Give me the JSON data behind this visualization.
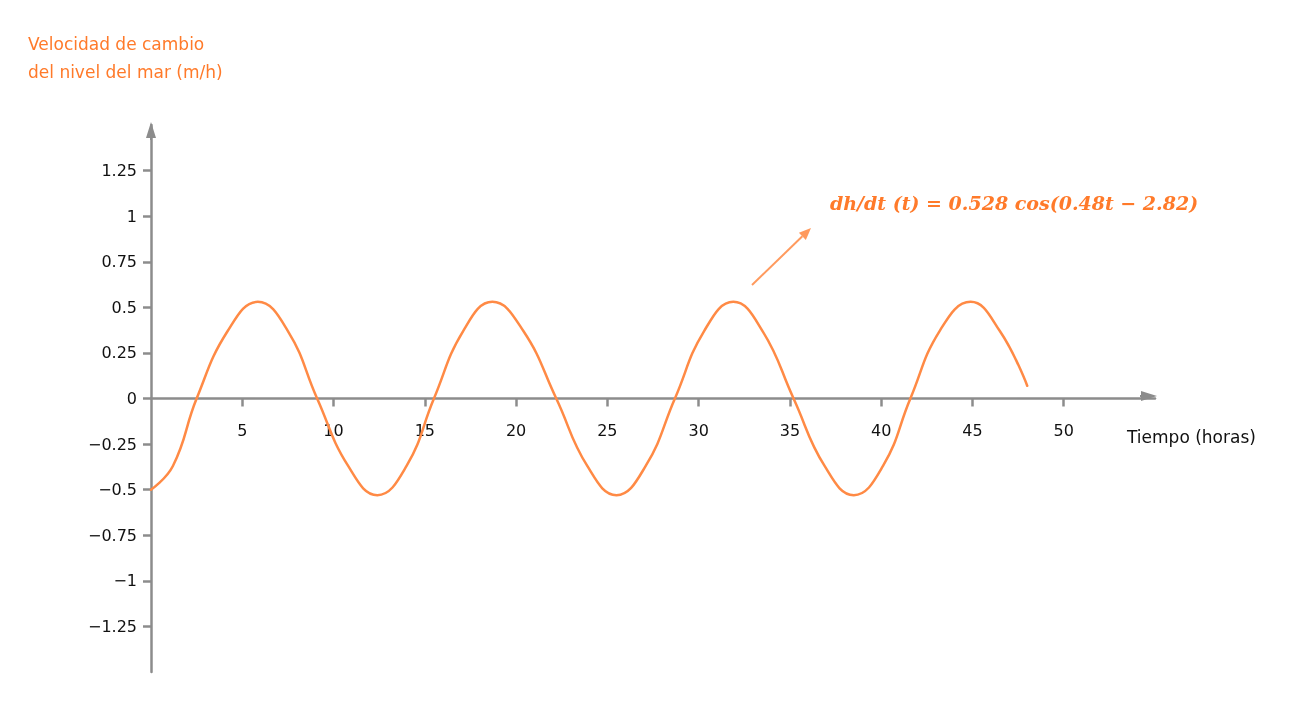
{
  "chart_data": {
    "type": "line",
    "ylabel": "Velocidad de cambio del nivel del mar (m/h)",
    "xlabel": "Tiempo (horas)",
    "x": [
      0,
      1.2,
      2.5,
      4.2,
      5.85,
      7.5,
      9.1,
      10.8,
      12.4,
      14.0,
      15.5,
      17.1,
      18.7,
      20.4,
      22.2,
      23.9,
      25.5,
      27.1,
      28.7,
      30.3,
      31.9,
      33.5,
      35.2,
      36.9,
      38.5,
      40.1,
      41.6,
      43.2,
      44.9,
      46.5,
      48.0
    ],
    "series": [
      {
        "color": "#ff8a45",
        "values": [
          -0.5,
          -0.37,
          0,
          0.37,
          0.53,
          0.37,
          0,
          -0.37,
          -0.53,
          -0.37,
          0,
          0.37,
          0.53,
          0.37,
          0,
          -0.37,
          -0.53,
          -0.37,
          0,
          0.37,
          0.53,
          0.37,
          0,
          -0.37,
          -0.53,
          -0.37,
          0,
          0.37,
          0.53,
          0.37,
          0.07
        ]
      }
    ],
    "xlim": [
      0,
      55
    ],
    "xticks": [
      5,
      10,
      15,
      20,
      25,
      30,
      35,
      40,
      45,
      50
    ],
    "ylim": [
      -1.5,
      1.5
    ],
    "yticks": [
      {
        "value": -1.25,
        "label": "−1.25"
      },
      {
        "value": -1,
        "label": "−1"
      },
      {
        "value": -0.75,
        "label": "−0.75"
      },
      {
        "value": -0.5,
        "label": "−0.5"
      },
      {
        "value": -0.25,
        "label": "−0.25"
      },
      0,
      0.25,
      0.5,
      0.75,
      1,
      1.25
    ],
    "annotations": [
      "dh/dt (t) = 0.528 cos(0.48t − 2.82)"
    ],
    "marker": "none",
    "line_style": "solid"
  }
}
